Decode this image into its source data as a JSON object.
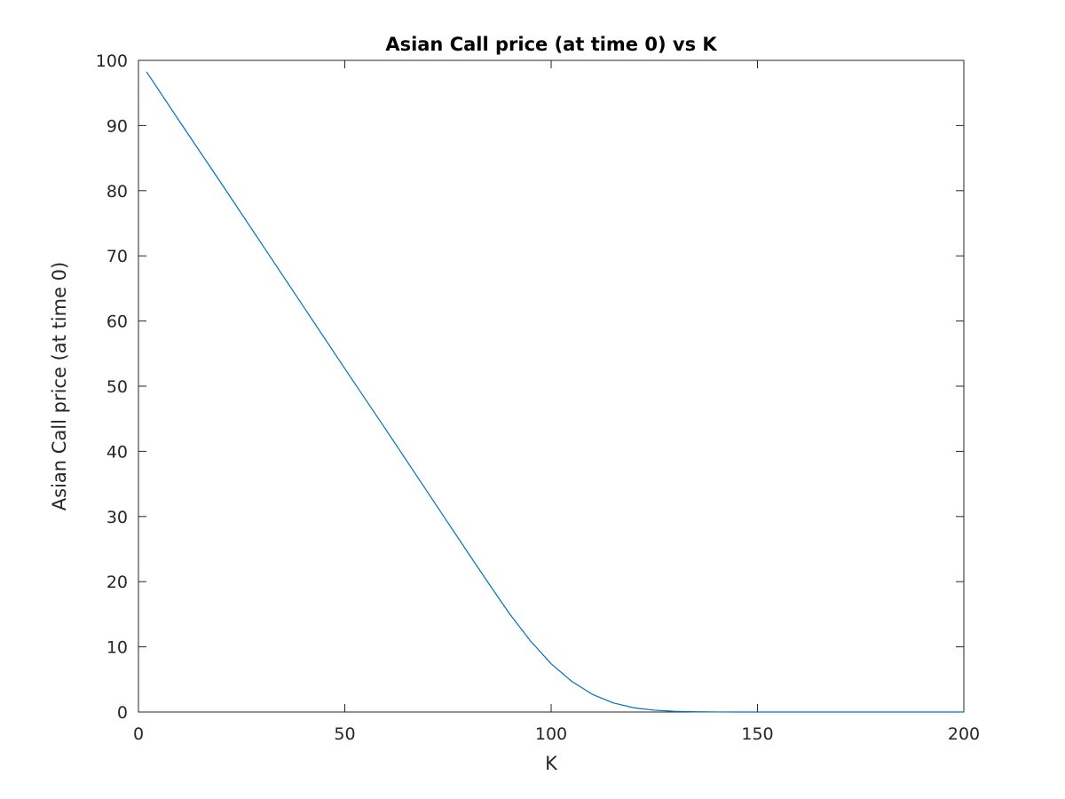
{
  "chart_data": {
    "type": "line",
    "title": "Asian Call price (at time 0) vs K",
    "xlabel": "K",
    "ylabel": "Asian Call price (at time 0)",
    "xlim": [
      0,
      200
    ],
    "ylim": [
      0,
      100
    ],
    "xticks": [
      "0",
      "50",
      "100",
      "150",
      "200"
    ],
    "yticks": [
      "0",
      "10",
      "20",
      "30",
      "40",
      "50",
      "60",
      "70",
      "80",
      "90",
      "100"
    ],
    "grid": false,
    "legend": "none",
    "series": [
      {
        "color": "#0072bd",
        "x": [
          2,
          10,
          20,
          30,
          40,
          50,
          60,
          70,
          80,
          85,
          90,
          95,
          100,
          105,
          110,
          115,
          120,
          125,
          130,
          135,
          140,
          145,
          150,
          160,
          170,
          180,
          190,
          200
        ],
        "y": [
          98.2,
          90.6,
          81.2,
          71.7,
          62.2,
          52.7,
          43.3,
          33.8,
          24.3,
          19.6,
          15.0,
          10.9,
          7.4,
          4.7,
          2.7,
          1.4,
          0.65,
          0.28,
          0.1,
          0.03,
          0.01,
          0,
          0,
          0,
          0,
          0,
          0,
          0
        ]
      }
    ]
  }
}
